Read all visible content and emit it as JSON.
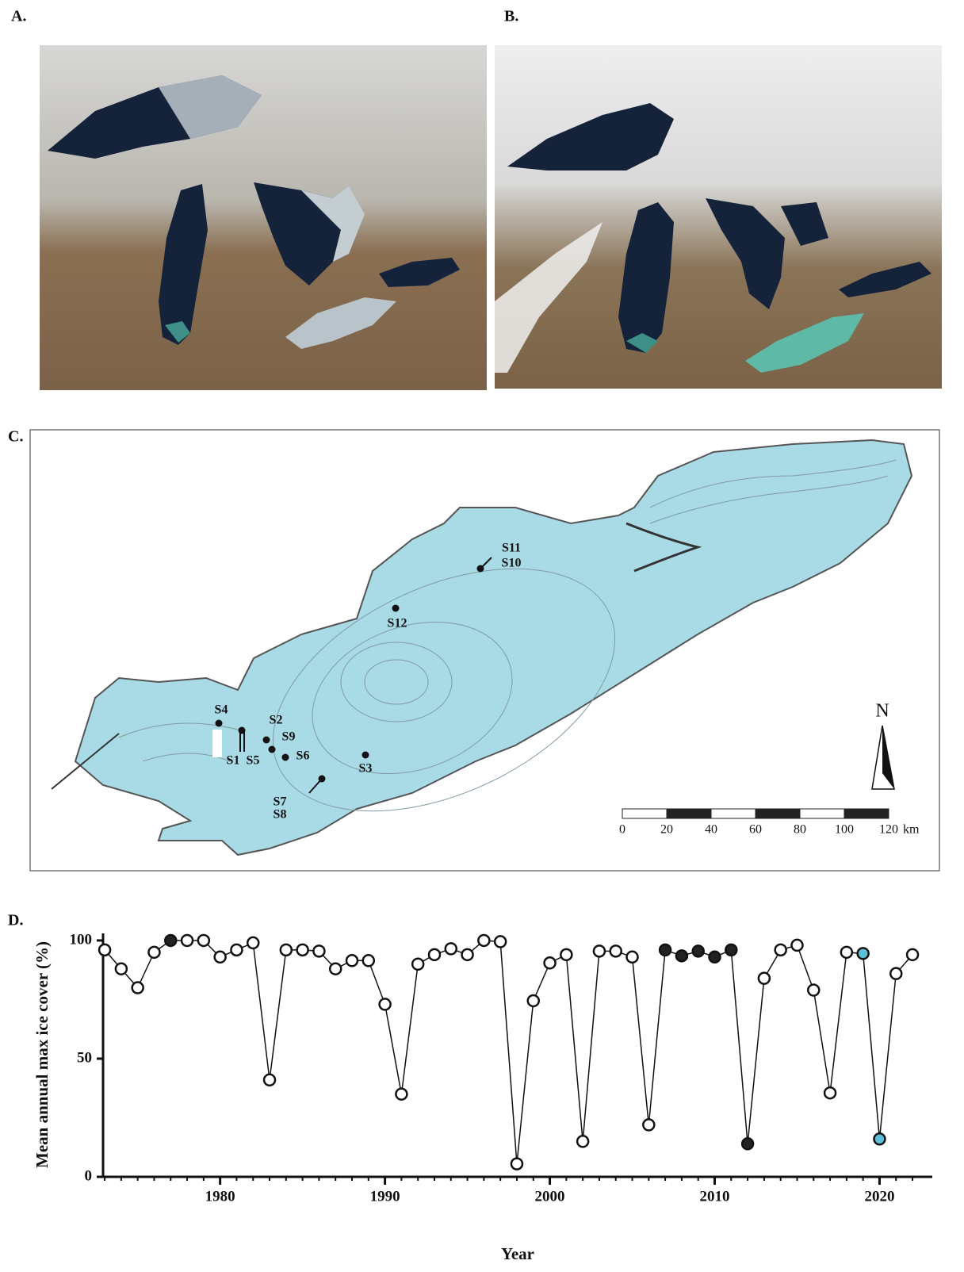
{
  "panels": [
    "A.",
    "B.",
    "C.",
    "D."
  ],
  "map": {
    "station_labels": [
      "S4",
      "S1",
      "S5",
      "S2",
      "S9",
      "S6",
      "S3",
      "S7",
      "S8",
      "S12",
      "S11",
      "S10"
    ],
    "north": "N",
    "scale_labels": [
      "0",
      "20",
      "40",
      "60",
      "80",
      "100",
      "120"
    ],
    "scale_unit": "km"
  },
  "chart_data": {
    "type": "line",
    "xlabel": "Year",
    "ylabel": "Mean annual max ice cover (%)",
    "x": [
      1973,
      1974,
      1975,
      1976,
      1977,
      1978,
      1979,
      1980,
      1981,
      1982,
      1983,
      1984,
      1985,
      1986,
      1987,
      1988,
      1989,
      1990,
      1991,
      1992,
      1993,
      1994,
      1995,
      1996,
      1997,
      1998,
      1999,
      2000,
      2001,
      2002,
      2003,
      2004,
      2005,
      2006,
      2007,
      2008,
      2009,
      2010,
      2011,
      2012,
      2013,
      2014,
      2015,
      2016,
      2017,
      2018,
      2019,
      2020,
      2021,
      2022
    ],
    "values": [
      96,
      88,
      80,
      95,
      100,
      100,
      100,
      93,
      96,
      99,
      41,
      96,
      96,
      95.5,
      88,
      91.5,
      91.5,
      73,
      35,
      90,
      94,
      96.5,
      94,
      100,
      99.5,
      5.5,
      74.5,
      90.5,
      94,
      15,
      95.5,
      95.5,
      93,
      22,
      96,
      93.5,
      95.5,
      93,
      96,
      14,
      84,
      96,
      98,
      79,
      35.5,
      95,
      94.5,
      16,
      86,
      94
    ],
    "marker_fills": [
      "#ffffff",
      "#ffffff",
      "#ffffff",
      "#ffffff",
      "#222222",
      "#ffffff",
      "#ffffff",
      "#ffffff",
      "#ffffff",
      "#ffffff",
      "#ffffff",
      "#ffffff",
      "#ffffff",
      "#ffffff",
      "#ffffff",
      "#ffffff",
      "#ffffff",
      "#ffffff",
      "#ffffff",
      "#ffffff",
      "#ffffff",
      "#ffffff",
      "#ffffff",
      "#ffffff",
      "#ffffff",
      "#ffffff",
      "#ffffff",
      "#ffffff",
      "#ffffff",
      "#ffffff",
      "#ffffff",
      "#ffffff",
      "#ffffff",
      "#ffffff",
      "#222222",
      "#222222",
      "#222222",
      "#222222",
      "#222222",
      "#222222",
      "#ffffff",
      "#ffffff",
      "#ffffff",
      "#ffffff",
      "#ffffff",
      "#ffffff",
      "#5bc0d8",
      "#5bc0d8",
      "#ffffff",
      "#ffffff"
    ],
    "color": "#111111",
    "xlim": [
      1972.9,
      2023.2
    ],
    "xticks": [
      1980,
      1990,
      2000,
      2010,
      2020
    ],
    "ylim": [
      0,
      103
    ],
    "yticks": [
      0,
      50,
      100
    ]
  }
}
